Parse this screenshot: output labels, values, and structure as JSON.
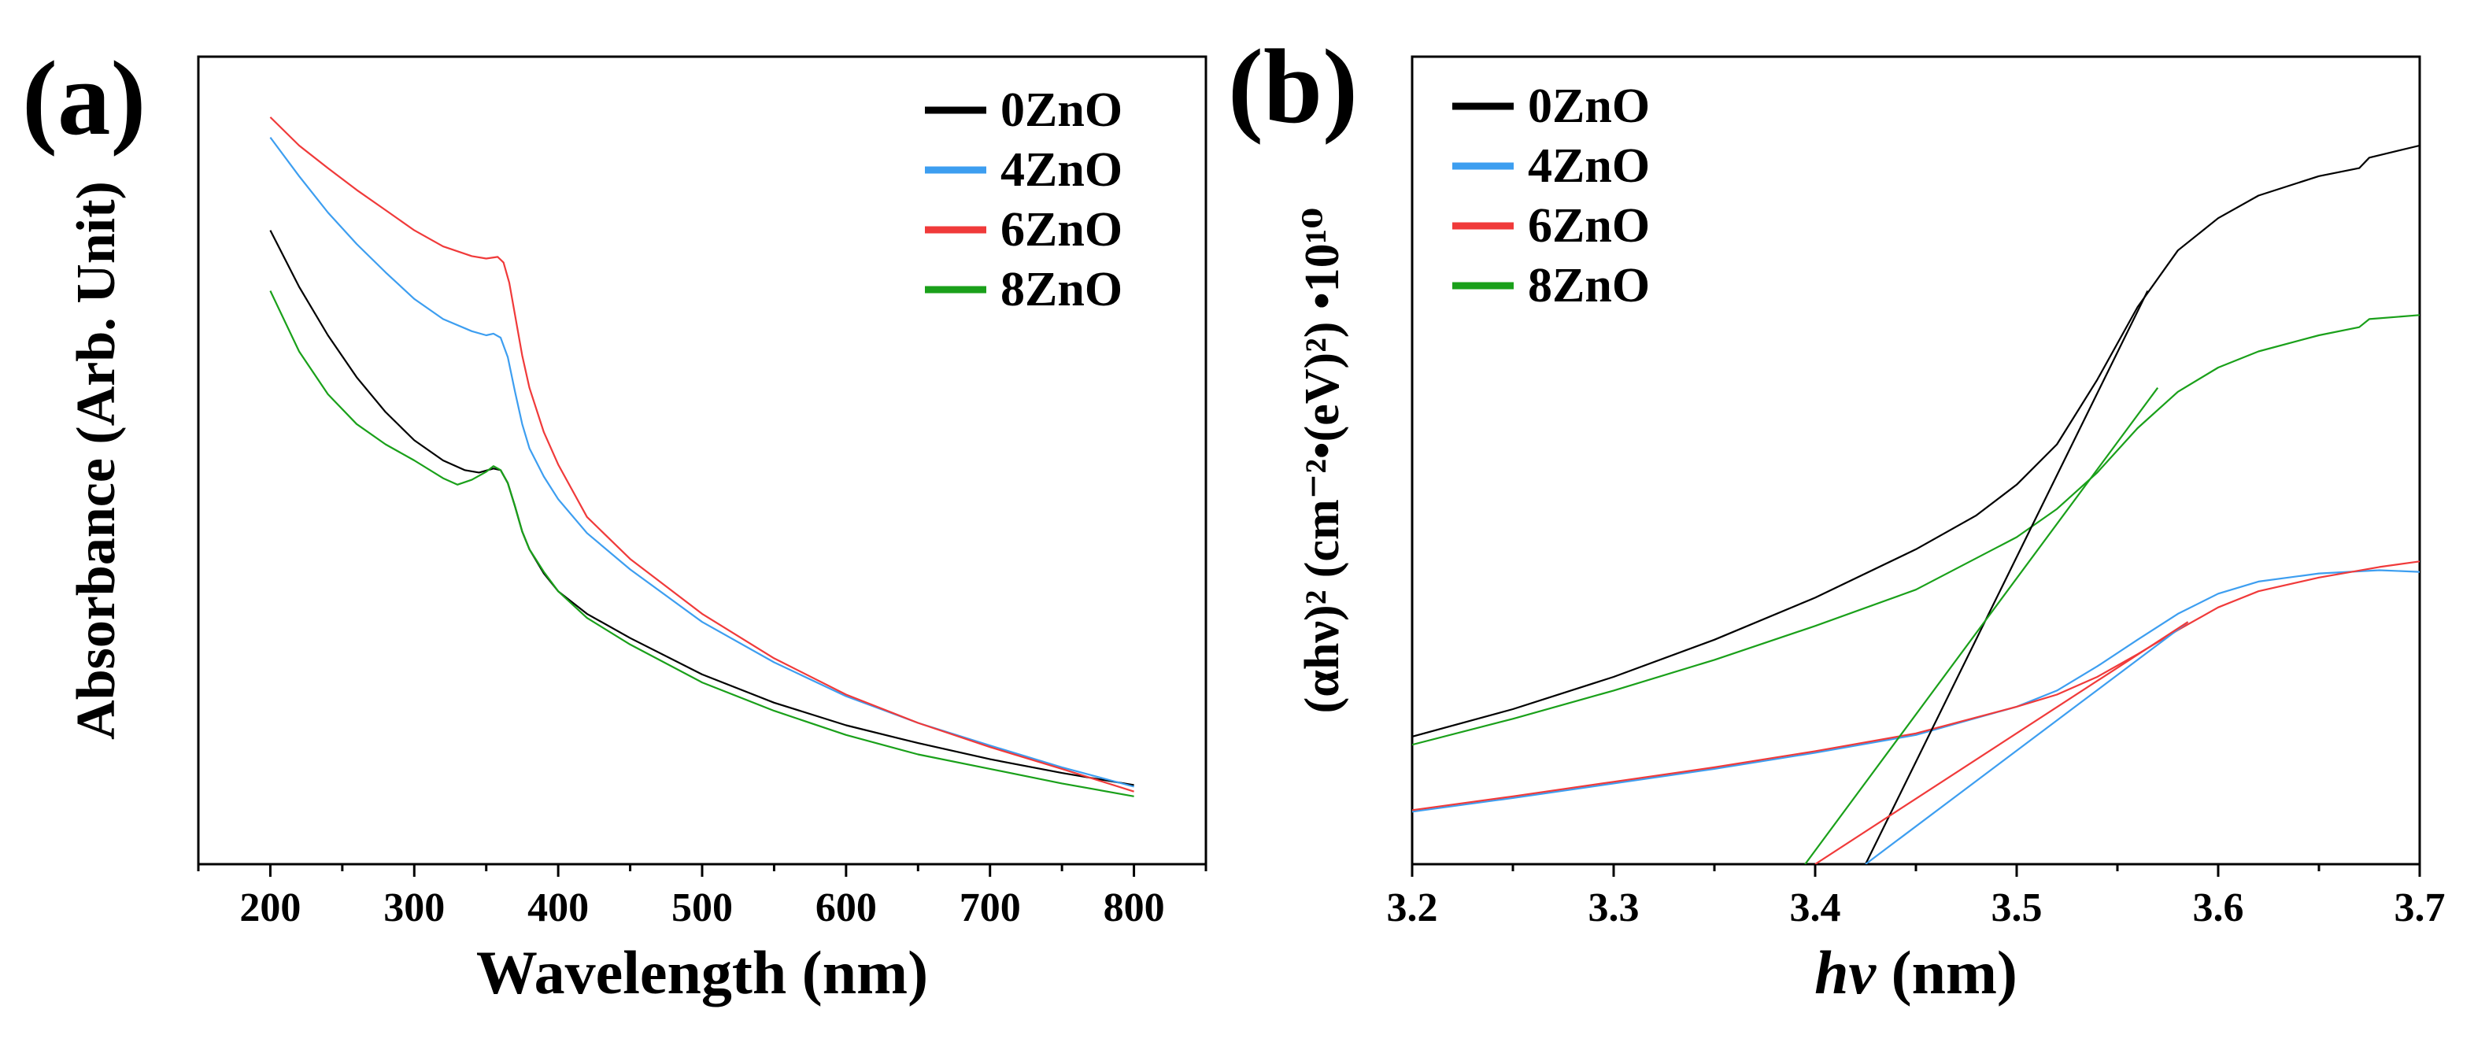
{
  "chart_data": [
    {
      "panel": "(a)",
      "type": "line",
      "xlabel": "Wavelength (nm)",
      "ylabel": "Absorbance (Arb. Unit)",
      "xlim": [
        150,
        850
      ],
      "ylim": [
        0,
        1
      ],
      "xticks": [
        200,
        300,
        400,
        500,
        600,
        700,
        800
      ],
      "legend_position": "top-right",
      "series": [
        {
          "name": "0ZnO",
          "color": "#000000",
          "x": [
            200,
            220,
            240,
            260,
            280,
            300,
            320,
            335,
            345,
            355,
            360,
            365,
            370,
            375,
            380,
            390,
            400,
            420,
            450,
            500,
            550,
            600,
            650,
            700,
            750,
            800
          ],
          "y": [
            0.785,
            0.715,
            0.655,
            0.603,
            0.56,
            0.525,
            0.5,
            0.488,
            0.485,
            0.49,
            0.488,
            0.472,
            0.443,
            0.412,
            0.39,
            0.36,
            0.338,
            0.31,
            0.28,
            0.235,
            0.2,
            0.172,
            0.15,
            0.13,
            0.113,
            0.098
          ]
        },
        {
          "name": "4ZnO",
          "color": "#3d9ef0",
          "x": [
            200,
            220,
            240,
            260,
            280,
            300,
            320,
            340,
            350,
            355,
            360,
            365,
            370,
            375,
            380,
            390,
            400,
            420,
            450,
            500,
            550,
            600,
            650,
            700,
            750,
            800
          ],
          "y": [
            0.9,
            0.852,
            0.807,
            0.768,
            0.733,
            0.7,
            0.675,
            0.66,
            0.655,
            0.657,
            0.652,
            0.628,
            0.585,
            0.545,
            0.515,
            0.48,
            0.452,
            0.41,
            0.365,
            0.3,
            0.25,
            0.208,
            0.175,
            0.147,
            0.12,
            0.096
          ]
        },
        {
          "name": "6ZnO",
          "color": "#f03a3a",
          "x": [
            200,
            220,
            240,
            260,
            280,
            300,
            320,
            340,
            350,
            358,
            362,
            366,
            370,
            375,
            380,
            390,
            400,
            420,
            450,
            500,
            550,
            600,
            650,
            700,
            750,
            800
          ],
          "y": [
            0.925,
            0.89,
            0.862,
            0.835,
            0.81,
            0.785,
            0.765,
            0.753,
            0.75,
            0.752,
            0.745,
            0.72,
            0.68,
            0.63,
            0.59,
            0.535,
            0.495,
            0.43,
            0.378,
            0.31,
            0.255,
            0.21,
            0.175,
            0.145,
            0.118,
            0.09
          ]
        },
        {
          "name": "8ZnO",
          "color": "#1aa01a",
          "x": [
            200,
            220,
            240,
            260,
            280,
            300,
            320,
            330,
            340,
            350,
            355,
            360,
            365,
            370,
            375,
            380,
            390,
            400,
            420,
            450,
            500,
            550,
            600,
            650,
            700,
            750,
            800
          ],
          "y": [
            0.71,
            0.635,
            0.582,
            0.545,
            0.52,
            0.5,
            0.478,
            0.47,
            0.476,
            0.486,
            0.493,
            0.488,
            0.472,
            0.443,
            0.412,
            0.39,
            0.362,
            0.338,
            0.305,
            0.272,
            0.225,
            0.19,
            0.16,
            0.136,
            0.118,
            0.1,
            0.084
          ]
        }
      ]
    },
    {
      "panel": "(b)",
      "type": "line",
      "xlabel_italic": "hv",
      "xlabel_rest": " (nm)",
      "ylabel": "(αhν)² (cm⁻²•(eV)²) •10¹⁰",
      "xlim": [
        3.2,
        3.7
      ],
      "ylim": [
        0,
        1
      ],
      "xticks": [
        3.2,
        3.3,
        3.4,
        3.5,
        3.6,
        3.7
      ],
      "xtick_labels": [
        "3.2",
        "3.3",
        "3.4",
        "3.5",
        "3.6",
        "3.7"
      ],
      "legend_position": "top-left",
      "series": [
        {
          "name": "0ZnO",
          "color": "#000000",
          "x": [
            3.2,
            3.25,
            3.3,
            3.35,
            3.4,
            3.45,
            3.48,
            3.5,
            3.52,
            3.54,
            3.56,
            3.58,
            3.6,
            3.62,
            3.65,
            3.67,
            3.675,
            3.7
          ],
          "y": [
            0.158,
            0.192,
            0.232,
            0.278,
            0.33,
            0.39,
            0.432,
            0.47,
            0.52,
            0.6,
            0.69,
            0.76,
            0.8,
            0.828,
            0.852,
            0.862,
            0.875,
            0.89
          ]
        },
        {
          "name": "4ZnO",
          "color": "#3d9ef0",
          "x": [
            3.2,
            3.25,
            3.3,
            3.35,
            3.4,
            3.45,
            3.5,
            3.52,
            3.54,
            3.56,
            3.58,
            3.6,
            3.62,
            3.65,
            3.68,
            3.7
          ],
          "y": [
            0.065,
            0.082,
            0.1,
            0.118,
            0.138,
            0.16,
            0.195,
            0.215,
            0.245,
            0.278,
            0.31,
            0.335,
            0.35,
            0.36,
            0.364,
            0.362
          ]
        },
        {
          "name": "6ZnO",
          "color": "#f03a3a",
          "x": [
            3.2,
            3.25,
            3.3,
            3.35,
            3.4,
            3.45,
            3.5,
            3.52,
            3.54,
            3.56,
            3.58,
            3.6,
            3.62,
            3.65,
            3.68,
            3.7
          ],
          "y": [
            0.067,
            0.084,
            0.102,
            0.12,
            0.14,
            0.162,
            0.195,
            0.21,
            0.232,
            0.26,
            0.29,
            0.318,
            0.338,
            0.355,
            0.368,
            0.375
          ]
        },
        {
          "name": "8ZnO",
          "color": "#1aa01a",
          "x": [
            3.2,
            3.25,
            3.3,
            3.35,
            3.4,
            3.45,
            3.5,
            3.52,
            3.54,
            3.56,
            3.58,
            3.6,
            3.62,
            3.65,
            3.67,
            3.675,
            3.7
          ],
          "y": [
            0.148,
            0.18,
            0.215,
            0.253,
            0.295,
            0.34,
            0.405,
            0.44,
            0.485,
            0.54,
            0.585,
            0.615,
            0.635,
            0.655,
            0.665,
            0.675,
            0.68
          ]
        }
      ],
      "tangent_lines": [
        {
          "name": "0ZnO",
          "color": "#000000",
          "x": [
            3.425,
            3.565
          ],
          "y": [
            0.0,
            0.71
          ]
        },
        {
          "name": "4ZnO",
          "color": "#3d9ef0",
          "x": [
            3.425,
            3.585
          ],
          "y": [
            0.0,
            0.3
          ]
        },
        {
          "name": "6ZnO",
          "color": "#f03a3a",
          "x": [
            3.4,
            3.585
          ],
          "y": [
            0.0,
            0.3
          ]
        },
        {
          "name": "8ZnO",
          "color": "#1aa01a",
          "x": [
            3.395,
            3.57
          ],
          "y": [
            0.0,
            0.59
          ]
        }
      ]
    }
  ]
}
